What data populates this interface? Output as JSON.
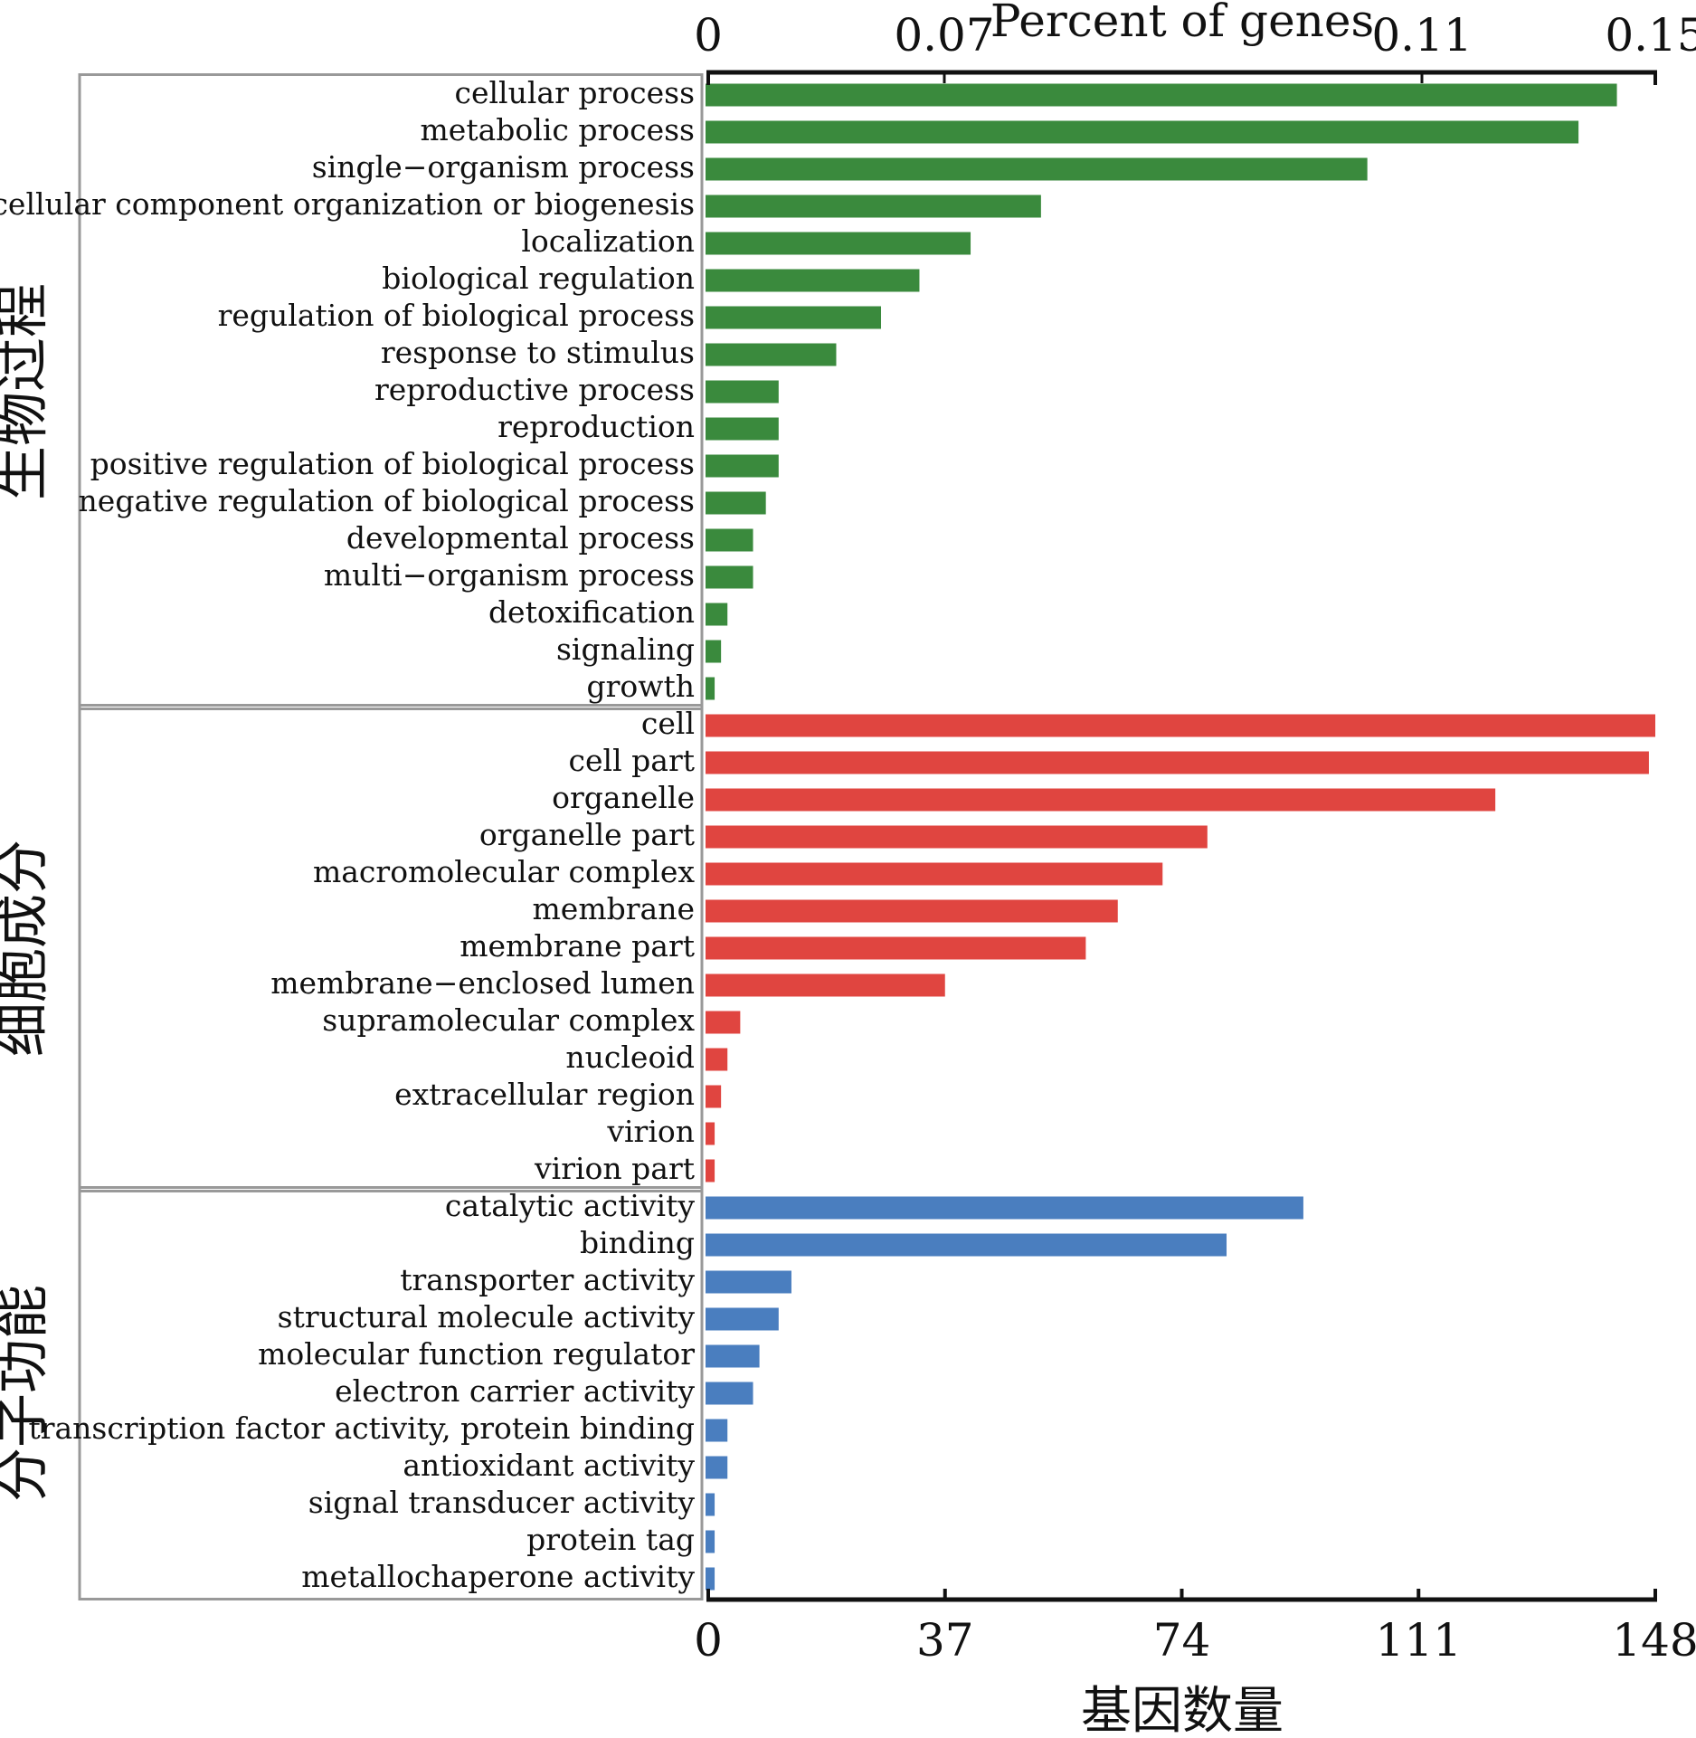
{
  "chart_data": {
    "type": "bar",
    "orientation": "horizontal",
    "top_axis": {
      "label": "Percent of genes",
      "ticks": [
        "0",
        "0.07",
        "0.11",
        "0.15"
      ]
    },
    "bottom_axis": {
      "label": "基因数量",
      "ticks": [
        "0",
        "37",
        "74",
        "111",
        "148"
      ],
      "range": [
        0,
        148
      ]
    },
    "groups": [
      {
        "name": "生物过程",
        "color": "#3a8a3d",
        "categories": [
          "cellular process",
          "metabolic process",
          "single−organism process",
          "cellular component organization or biogenesis",
          "localization",
          "biological regulation",
          "regulation of biological process",
          "response to stimulus",
          "reproductive process",
          "reproduction",
          "positive regulation of biological process",
          "negative regulation of biological process",
          "developmental process",
          "multi−organism process",
          "detoxification",
          "signaling",
          "growth"
        ],
        "values": [
          142,
          136,
          103,
          52,
          41,
          33,
          27,
          20,
          11,
          11,
          11,
          9,
          7,
          7,
          3,
          2,
          1
        ]
      },
      {
        "name": "细胞成分",
        "color": "#e04540",
        "categories": [
          "cell",
          "cell part",
          "organelle",
          "organelle part",
          "macromolecular complex",
          "membrane",
          "membrane part",
          "membrane−enclosed lumen",
          "supramolecular complex",
          "nucleoid",
          "extracellular region",
          "virion",
          "virion part"
        ],
        "values": [
          148,
          147,
          123,
          78,
          71,
          64,
          59,
          37,
          5,
          3,
          2,
          1,
          1
        ]
      },
      {
        "name": "分子功能",
        "color": "#4a7ebf",
        "categories": [
          "catalytic activity",
          "binding",
          "transporter activity",
          "structural molecule activity",
          "molecular function regulator",
          "electron carrier activity",
          "transcription factor activity, protein binding",
          "antioxidant activity",
          "signal transducer activity",
          "protein tag",
          "metallochaperone activity"
        ],
        "values": [
          93,
          81,
          13,
          11,
          8,
          7,
          3,
          3,
          1,
          1,
          1
        ]
      }
    ]
  }
}
